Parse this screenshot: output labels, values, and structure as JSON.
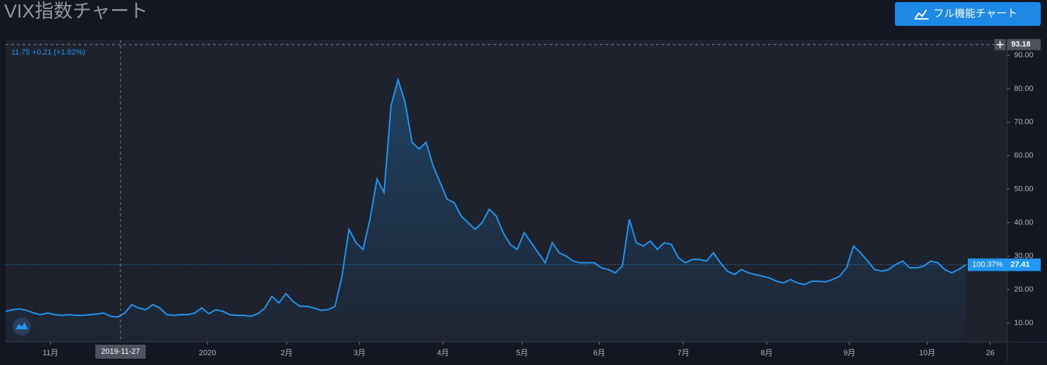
{
  "chart_data": {
    "type": "area",
    "title": "VIX指数チャート",
    "button": "フル機能チャート",
    "legend_text": "11.75 +0.21 (+1.82%)",
    "color": "#2196f3",
    "values": [
      13.5,
      14,
      14.2,
      13.8,
      13,
      12.5,
      13,
      12.5,
      12.3,
      12.5,
      12.3,
      12.3,
      12.5,
      12.7,
      13,
      12,
      11.8,
      13,
      15.5,
      14.5,
      14,
      15.5,
      14.5,
      12.5,
      12.3,
      12.5,
      12.5,
      13,
      14.5,
      12.8,
      14,
      13.5,
      12.5,
      12.3,
      12.3,
      12,
      12.8,
      14.5,
      18,
      16,
      18.8,
      16.5,
      15,
      15,
      14.5,
      13.8,
      14,
      15,
      24,
      38,
      34,
      32,
      41,
      53,
      49,
      75,
      82.7,
      76,
      64,
      62,
      64,
      57,
      52,
      47,
      46,
      42,
      40,
      38,
      40,
      44,
      42,
      37,
      33.5,
      32,
      37,
      34,
      31,
      28,
      34,
      31,
      30,
      28.5,
      28,
      28,
      28,
      26.5,
      26,
      25,
      27,
      41,
      34,
      33,
      34.5,
      32,
      34,
      33.5,
      29.5,
      28,
      29,
      29,
      28.5,
      31,
      28,
      25.5,
      24.5,
      26,
      25,
      24.5,
      24,
      23.5,
      22.5,
      22,
      23,
      22,
      21.5,
      22.5,
      22.5,
      22.3,
      23,
      24,
      26.5,
      33,
      31,
      28.5,
      26,
      25.5,
      26,
      27.5,
      28.5,
      26.5,
      26.5,
      27,
      28.5,
      28,
      26,
      25,
      26,
      27.41
    ],
    "xlim": [
      0,
      142.9
    ],
    "xticks": [
      {
        "value": 6.4,
        "label": "11月"
      },
      {
        "value": 28.8,
        "label": "2020"
      },
      {
        "value": 40.1,
        "label": "2月"
      },
      {
        "value": 50.5,
        "label": "3月"
      },
      {
        "value": 62.4,
        "label": "4月"
      },
      {
        "value": 73.7,
        "label": "5月"
      },
      {
        "value": 84.7,
        "label": "6月"
      },
      {
        "value": 96.7,
        "label": "7月"
      },
      {
        "value": 108.6,
        "label": "8月"
      },
      {
        "value": 120.4,
        "label": "9月"
      },
      {
        "value": 131.5,
        "label": "10月"
      },
      {
        "value": 140.5,
        "label": "26"
      }
    ],
    "ylim": [
      4.36,
      94.6
    ],
    "yticks": [
      {
        "value": 10,
        "label": "10.00"
      },
      {
        "value": 20,
        "label": "20.00"
      },
      {
        "value": 30,
        "label": "30.00"
      },
      {
        "value": 40,
        "label": "40.00"
      },
      {
        "value": 50,
        "label": "50.00"
      },
      {
        "value": 60,
        "label": "60.00"
      },
      {
        "value": 70,
        "label": "70.00"
      },
      {
        "value": 80,
        "label": "80.00"
      },
      {
        "value": 90,
        "label": "90.00"
      }
    ],
    "crosshair": {
      "x": 16.4,
      "x_label": "2019-11-27",
      "y": 93.18
    },
    "last_change": "100.37%"
  }
}
